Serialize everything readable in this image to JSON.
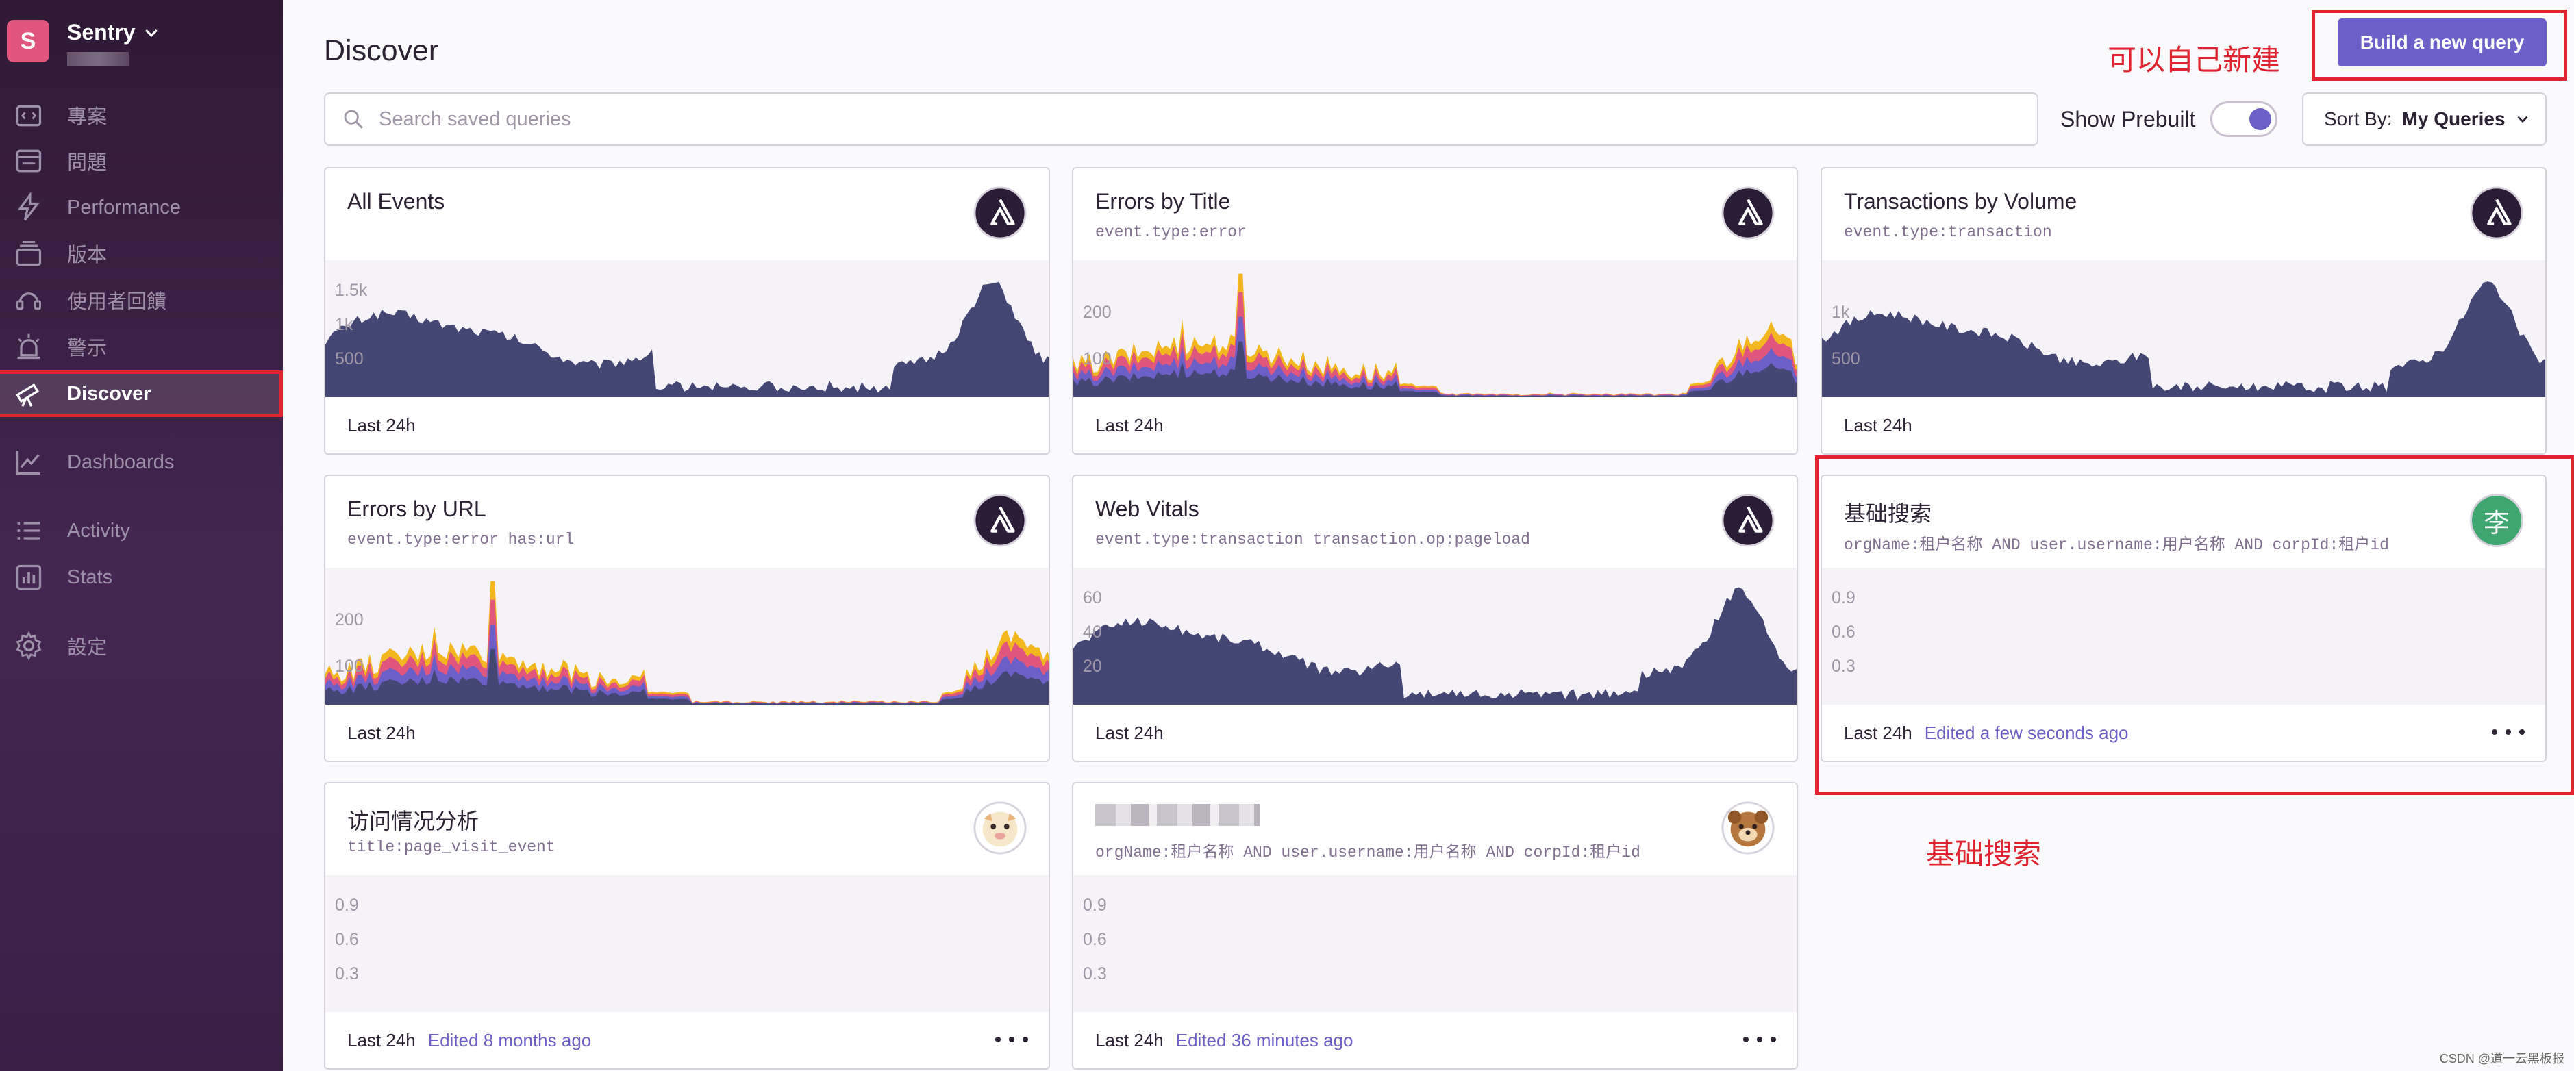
{
  "app": {
    "org_logo_letter": "S",
    "org_name": "Sentry"
  },
  "sidebar": {
    "items": [
      {
        "label": "專案",
        "icon": "projects-icon"
      },
      {
        "label": "問題",
        "icon": "issues-icon"
      },
      {
        "label": "Performance",
        "icon": "lightning-icon"
      },
      {
        "label": "版本",
        "icon": "releases-icon"
      },
      {
        "label": "使用者回饋",
        "icon": "feedback-icon"
      },
      {
        "label": "警示",
        "icon": "siren-icon"
      },
      {
        "label": "Discover",
        "icon": "telescope-icon",
        "active": true
      },
      {
        "label": "Dashboards",
        "icon": "graph-icon"
      },
      {
        "label": "Activity",
        "icon": "list-icon"
      },
      {
        "label": "Stats",
        "icon": "bar-chart-icon"
      },
      {
        "label": "設定",
        "icon": "gear-icon"
      }
    ]
  },
  "header": {
    "title": "Discover",
    "build_button": "Build a new query"
  },
  "search": {
    "placeholder": "Search saved queries"
  },
  "controls": {
    "show_prebuilt_label": "Show Prebuilt",
    "show_prebuilt_on": true,
    "sort_label": "Sort By:",
    "sort_value": "My Queries"
  },
  "annotations": {
    "build_note": "可以自己新建",
    "basic_search_note": "基础搜索"
  },
  "cards": [
    {
      "title": "All Events",
      "query": "",
      "range": "Last 24h",
      "edited": "",
      "avatar": "sentry-logo-icon",
      "y_ticks": [
        "1.5k",
        "1k",
        "500"
      ]
    },
    {
      "title": "Errors by Title",
      "query": "event.type:error",
      "range": "Last 24h",
      "edited": "",
      "avatar": "sentry-logo-icon",
      "y_ticks": [
        "200",
        "100"
      ]
    },
    {
      "title": "Transactions by Volume",
      "query": "event.type:transaction",
      "range": "Last 24h",
      "edited": "",
      "avatar": "sentry-logo-icon",
      "y_ticks": [
        "1k",
        "500"
      ]
    },
    {
      "title": "Errors by URL",
      "query": "event.type:error has:url",
      "range": "Last 24h",
      "edited": "",
      "avatar": "sentry-logo-icon",
      "y_ticks": [
        "200",
        "100"
      ]
    },
    {
      "title": "Web Vitals",
      "query": "event.type:transaction transaction.op:pageload",
      "range": "Last 24h",
      "edited": "",
      "avatar": "sentry-logo-icon",
      "y_ticks": [
        "60",
        "40",
        "20"
      ]
    },
    {
      "title": "基础搜索",
      "query": "orgName:租户名称 AND user.username:用户名称 AND corpId:租户id",
      "range": "Last 24h",
      "edited": "Edited a few seconds ago",
      "avatar": "user-avatar-icon",
      "avatar_letter": "李",
      "y_ticks": [
        "0.9",
        "0.6",
        "0.3"
      ]
    },
    {
      "title": "访问情况分析",
      "query": "title:page_visit_event",
      "range": "Last 24h",
      "edited": "Edited 8 months ago",
      "avatar": "user-avatar-icon",
      "y_ticks": [
        "0.9",
        "0.6",
        "0.3"
      ]
    },
    {
      "title": "",
      "query": "orgName:租户名称 AND user.username:用户名称 AND corpId:租户id",
      "range": "Last 24h",
      "edited": "Edited 36 minutes ago",
      "avatar": "user-avatar-icon",
      "y_ticks": [
        "0.9",
        "0.6",
        "0.3"
      ]
    }
  ],
  "credit": "CSDN @道一云黑板报"
}
